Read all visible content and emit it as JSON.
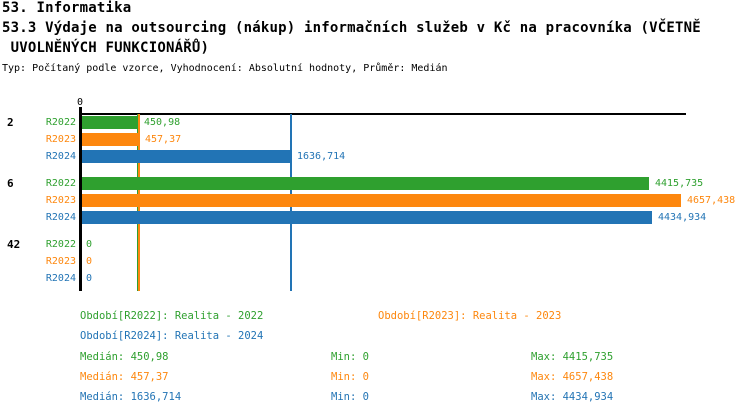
{
  "header": {
    "line1": "53. Informatika",
    "line2": "53.3 Výdaje na outsourcing (nákup) informačních služeb v Kč na pracovníka (VČETNĚ",
    "line3": " UVOLNĚNÝCH FUNKCIONÁŘŮ)",
    "meta": "Typ: Počítaný podle vzorce, Vyhodnocení: Absolutní hodnoty, Průměr: Medián"
  },
  "colors": {
    "R2022": "#2FA02F",
    "R2023": "#FD870E",
    "R2024": "#2274B5",
    "axis": "#000000"
  },
  "chart_data": {
    "type": "bar",
    "orientation": "horizontal",
    "title": "53.3 Výdaje na outsourcing (nákup) informačních služeb v Kč na pracovníka (VČETNĚ UVOLNĚNÝCH FUNKCIONÁŘŮ)",
    "value_axis": {
      "min": 0,
      "max": 4700,
      "tick_labels": [
        "0"
      ],
      "grid": false
    },
    "categories": [
      "2",
      "6",
      "42"
    ],
    "series_names": [
      "R2022",
      "R2023",
      "R2024"
    ],
    "series": [
      {
        "name": "R2022",
        "values": [
          450.98,
          4415.735,
          0
        ]
      },
      {
        "name": "R2023",
        "values": [
          457.37,
          4657.438,
          0
        ]
      },
      {
        "name": "R2024",
        "values": [
          1636.714,
          4434.934,
          0
        ]
      }
    ],
    "groups": [
      {
        "category": "2",
        "bars": [
          {
            "series": "R2022",
            "value": 450.98,
            "label": "450,98"
          },
          {
            "series": "R2023",
            "value": 457.37,
            "label": "457,37"
          },
          {
            "series": "R2024",
            "value": 1636.714,
            "label": "1636,714"
          }
        ]
      },
      {
        "category": "6",
        "bars": [
          {
            "series": "R2022",
            "value": 4415.735,
            "label": "4415,735"
          },
          {
            "series": "R2023",
            "value": 4657.438,
            "label": "4657,438"
          },
          {
            "series": "R2024",
            "value": 4434.934,
            "label": "4434,934"
          }
        ]
      },
      {
        "category": "42",
        "bars": [
          {
            "series": "R2022",
            "value": 0,
            "label": "0"
          },
          {
            "series": "R2023",
            "value": 0,
            "label": "0"
          },
          {
            "series": "R2024",
            "value": 0,
            "label": "0"
          }
        ]
      }
    ],
    "median_lines": [
      {
        "series": "R2022",
        "value": 450.98
      },
      {
        "series": "R2023",
        "value": 457.37
      },
      {
        "series": "R2024",
        "value": 1636.714
      }
    ],
    "legend_position": "bottom"
  },
  "legend": {
    "items": [
      {
        "series": "R2022",
        "text": "Období[R2022]: Realita - 2022"
      },
      {
        "series": "R2023",
        "text": "Období[R2023]: Realita - 2023"
      },
      {
        "series": "R2024",
        "text": "Období[R2024]: Realita - 2024"
      }
    ]
  },
  "stats": [
    {
      "series": "R2022",
      "median": "Medián: 450,98",
      "min": "Min: 0",
      "max": "Max: 4415,735"
    },
    {
      "series": "R2023",
      "median": "Medián: 457,37",
      "min": "Min: 0",
      "max": "Max: 4657,438"
    },
    {
      "series": "R2024",
      "median": "Medián: 1636,714",
      "min": "Min: 0",
      "max": "Max: 4434,934"
    }
  ]
}
